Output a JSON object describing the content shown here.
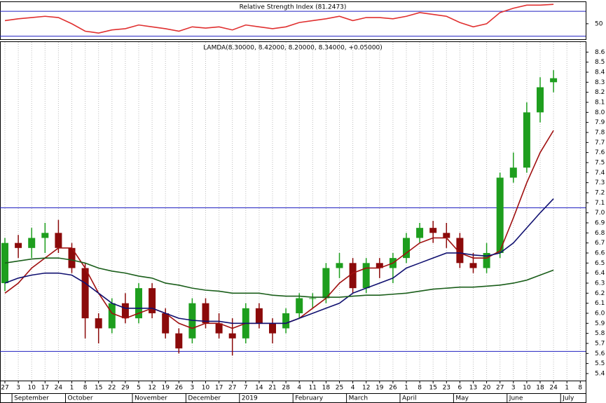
{
  "chart_data": [
    {
      "type": "line",
      "title": "Relative Strength Index (81.2473)",
      "color": "#e03030",
      "values": [
        55,
        58,
        60,
        62,
        60,
        50,
        38,
        35,
        40,
        42,
        48,
        45,
        42,
        38,
        45,
        43,
        45,
        40,
        48,
        45,
        42,
        45,
        52,
        55,
        58,
        62,
        55,
        60,
        60,
        58,
        62,
        68,
        65,
        62,
        52,
        45,
        50,
        68,
        75,
        80,
        80,
        81.2473,
        null,
        null
      ],
      "ylim": [
        25,
        86
      ],
      "yticks": [
        50
      ],
      "hlines": [
        30,
        70
      ],
      "hline_color": "#2020c0"
    },
    {
      "type": "candlestick",
      "title": "LAMDA(8.30000, 8.42000, 8.20000, 8.34000, +0.05000)",
      "categories": [
        "27",
        "3",
        "10",
        "17",
        "24",
        "1",
        "8",
        "15",
        "22",
        "29",
        "5",
        "12",
        "19",
        "26",
        "3",
        "10",
        "17",
        "27",
        "7",
        "14",
        "21",
        "28",
        "4",
        "11",
        "18",
        "25",
        "4",
        "12",
        "19",
        "26",
        "1",
        "8",
        "15",
        "23",
        "6",
        "13",
        "20",
        "27",
        "3",
        "10",
        "18",
        "24",
        "1",
        "8"
      ],
      "month_labels": [
        null,
        "September",
        null,
        null,
        null,
        "October",
        null,
        null,
        null,
        null,
        "November",
        null,
        null,
        null,
        "December",
        null,
        null,
        null,
        "2019",
        null,
        null,
        null,
        "February",
        null,
        null,
        null,
        "March",
        null,
        null,
        null,
        "April",
        null,
        null,
        null,
        "May",
        null,
        null,
        null,
        "June",
        null,
        null,
        null,
        "July",
        null
      ],
      "open": [
        6.3,
        6.7,
        6.65,
        6.75,
        6.8,
        6.65,
        6.45,
        5.95,
        5.85,
        6.1,
        5.95,
        6.25,
        6.0,
        5.8,
        5.75,
        6.1,
        5.9,
        5.8,
        5.75,
        6.05,
        5.9,
        5.85,
        6.0,
        6.15,
        6.15,
        6.45,
        6.5,
        6.25,
        6.5,
        6.45,
        6.55,
        6.75,
        6.85,
        6.8,
        6.75,
        6.5,
        6.45,
        6.6,
        7.35,
        7.45,
        8.0,
        8.3,
        null,
        null
      ],
      "high": [
        6.75,
        6.78,
        6.85,
        6.9,
        6.93,
        6.7,
        6.5,
        6.0,
        6.15,
        6.2,
        6.3,
        6.3,
        6.05,
        5.85,
        6.15,
        6.15,
        6.0,
        5.95,
        6.1,
        6.1,
        5.95,
        6.05,
        6.2,
        6.2,
        6.5,
        6.6,
        6.55,
        6.55,
        6.55,
        6.6,
        6.8,
        6.9,
        6.92,
        6.9,
        6.8,
        6.6,
        6.7,
        7.4,
        7.6,
        8.1,
        8.35,
        8.42,
        null,
        null
      ],
      "low": [
        6.22,
        6.55,
        6.55,
        6.6,
        6.6,
        6.4,
        5.75,
        5.7,
        5.8,
        5.9,
        5.9,
        5.95,
        5.75,
        5.6,
        5.7,
        5.85,
        5.75,
        5.58,
        5.7,
        5.85,
        5.7,
        5.8,
        5.95,
        6.05,
        6.1,
        6.35,
        6.2,
        6.2,
        6.35,
        6.3,
        6.5,
        6.7,
        6.7,
        6.65,
        6.45,
        6.4,
        6.4,
        6.55,
        7.3,
        7.4,
        7.9,
        8.2,
        null,
        null
      ],
      "close": [
        6.7,
        6.65,
        6.75,
        6.8,
        6.65,
        6.45,
        5.95,
        5.85,
        6.1,
        5.95,
        6.25,
        6.0,
        5.8,
        5.65,
        6.1,
        5.9,
        5.8,
        5.75,
        6.05,
        5.9,
        5.8,
        6.0,
        6.15,
        6.15,
        6.45,
        6.5,
        6.25,
        6.5,
        6.45,
        6.55,
        6.75,
        6.85,
        6.8,
        6.75,
        6.5,
        6.45,
        6.6,
        7.35,
        7.45,
        8.0,
        8.25,
        8.34,
        null,
        null
      ],
      "up_color": "#1e9e1e",
      "down_color": "#8b0a0a",
      "overlays": [
        {
          "color": "#a01010",
          "values": [
            6.2,
            6.3,
            6.45,
            6.55,
            6.65,
            6.65,
            6.45,
            6.2,
            6.0,
            5.95,
            6.0,
            6.05,
            6.0,
            5.9,
            5.85,
            5.9,
            5.9,
            5.85,
            5.9,
            5.9,
            5.9,
            5.9,
            5.95,
            6.05,
            6.15,
            6.3,
            6.4,
            6.45,
            6.45,
            6.5,
            6.6,
            6.7,
            6.75,
            6.75,
            6.6,
            6.55,
            6.55,
            6.62,
            6.95,
            7.3,
            7.6,
            7.82,
            null,
            null
          ]
        },
        {
          "color": "#101070",
          "values": [
            6.3,
            6.35,
            6.38,
            6.4,
            6.4,
            6.38,
            6.3,
            6.2,
            6.1,
            6.05,
            6.05,
            6.05,
            6.0,
            5.95,
            5.93,
            5.92,
            5.92,
            5.9,
            5.9,
            5.9,
            5.9,
            5.9,
            5.95,
            6.0,
            6.05,
            6.1,
            6.2,
            6.25,
            6.3,
            6.35,
            6.45,
            6.5,
            6.55,
            6.6,
            6.6,
            6.58,
            6.57,
            6.6,
            6.7,
            6.85,
            7.0,
            7.14,
            null,
            null
          ]
        },
        {
          "color": "#1a5e1a",
          "values": [
            6.5,
            6.52,
            6.54,
            6.55,
            6.55,
            6.53,
            6.5,
            6.45,
            6.42,
            6.4,
            6.37,
            6.35,
            6.3,
            6.28,
            6.25,
            6.23,
            6.22,
            6.2,
            6.2,
            6.2,
            6.18,
            6.17,
            6.17,
            6.16,
            6.16,
            6.16,
            6.17,
            6.18,
            6.18,
            6.19,
            6.2,
            6.22,
            6.24,
            6.25,
            6.26,
            6.26,
            6.27,
            6.28,
            6.3,
            6.33,
            6.38,
            6.43,
            null,
            null
          ]
        }
      ],
      "ylim": [
        5.33,
        8.7
      ],
      "yticks": [
        5.4,
        5.5,
        5.6,
        5.7,
        5.8,
        5.9,
        {
          "value": 6,
          "label": "6.0"
        },
        6.1,
        6.2,
        6.3,
        6.4,
        6.5,
        6.6,
        6.7,
        6.8,
        6.9,
        {
          "value": 7,
          "label": "7.0"
        },
        7.1,
        7.2,
        7.3,
        7.4,
        7.5,
        7.6,
        7.7,
        7.8,
        7.9,
        {
          "value": 8,
          "label": "8.0"
        },
        8.1,
        8.2,
        8.3,
        8.4,
        8.5,
        8.6
      ],
      "hlines": [
        7.05,
        5.62
      ],
      "hline_color": "#2020c0"
    }
  ]
}
